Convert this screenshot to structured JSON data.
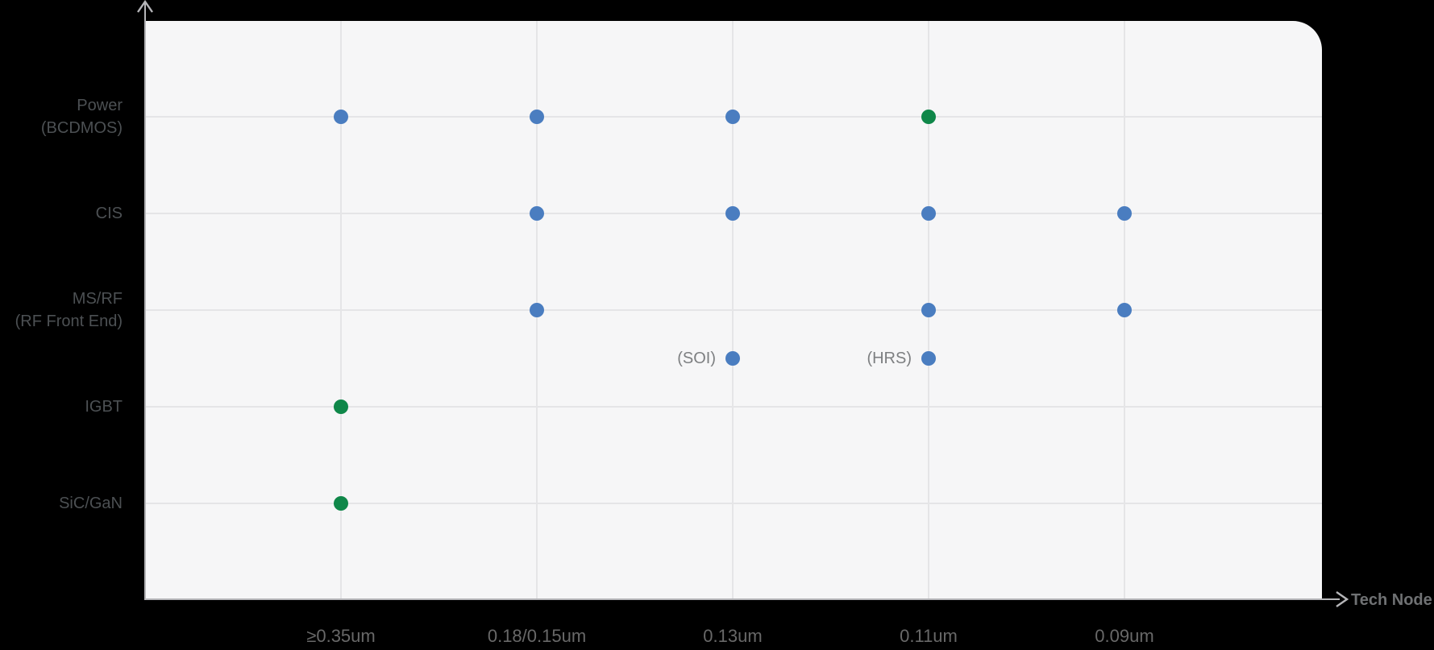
{
  "colors": {
    "blue": "#4a7dc0",
    "green": "#0f8749",
    "panel_bg": "#f6f6f7",
    "gridline": "#e5e5e7",
    "axis": "#b5b5b8",
    "page_bg": "#000000"
  },
  "axis_labels": {
    "x_title": "Tech Node"
  },
  "chart_data": {
    "type": "scatter",
    "xlabel": "Tech Node",
    "ylabel": "",
    "title": "",
    "grid": true,
    "legend": "none",
    "x_categories": [
      "≥0.35um",
      "0.18/0.15um",
      "0.13um",
      "0.11um",
      "0.09um"
    ],
    "y_categories": [
      "Power (BCDMOS)",
      "CIS",
      "MS/RF (RF Front End)",
      "IGBT",
      "SiC/GaN"
    ],
    "y_axis_labels": [
      {
        "row": 0,
        "lines": [
          "Power",
          "(BCDMOS)"
        ]
      },
      {
        "row": 1,
        "lines": [
          "CIS"
        ]
      },
      {
        "row": 2,
        "lines": [
          "MS/RF",
          "(RF Front End)"
        ]
      },
      {
        "row": 3,
        "lines": [
          "IGBT"
        ]
      },
      {
        "row": 4,
        "lines": [
          "SiC/GaN"
        ]
      }
    ],
    "x_ticks": [
      {
        "col": 0,
        "label": "≥0.35um"
      },
      {
        "col": 1,
        "label": "0.18/0.15um"
      },
      {
        "col": 2,
        "label": "0.13um"
      },
      {
        "col": 3,
        "label": "0.11um"
      },
      {
        "col": 4,
        "label": "0.09um"
      }
    ],
    "series": [
      {
        "name": "blue-dots",
        "color": "blue",
        "points": [
          {
            "y_cat": "Power (BCDMOS)",
            "row": 0,
            "x_cat": "≥0.35um",
            "col": 0
          },
          {
            "y_cat": "Power (BCDMOS)",
            "row": 0,
            "x_cat": "0.18/0.15um",
            "col": 1
          },
          {
            "y_cat": "Power (BCDMOS)",
            "row": 0,
            "x_cat": "0.13um",
            "col": 2
          },
          {
            "y_cat": "CIS",
            "row": 1,
            "x_cat": "0.18/0.15um",
            "col": 1
          },
          {
            "y_cat": "CIS",
            "row": 1,
            "x_cat": "0.13um",
            "col": 2
          },
          {
            "y_cat": "CIS",
            "row": 1,
            "x_cat": "0.11um",
            "col": 3
          },
          {
            "y_cat": "CIS",
            "row": 1,
            "x_cat": "0.09um",
            "col": 4
          },
          {
            "y_cat": "MS/RF (RF Front End)",
            "row": 2,
            "x_cat": "0.18/0.15um",
            "col": 1
          },
          {
            "y_cat": "MS/RF (RF Front End)",
            "row": 2,
            "x_cat": "0.11um",
            "col": 3
          },
          {
            "y_cat": "MS/RF (RF Front End)",
            "row": 2,
            "x_cat": "0.09um",
            "col": 4
          },
          {
            "y_cat": "MS/RF (RF Front End)",
            "row": 2.5,
            "x_cat": "0.13um",
            "col": 2,
            "note": "(SOI)"
          },
          {
            "y_cat": "MS/RF (RF Front End)",
            "row": 2.5,
            "x_cat": "0.11um",
            "col": 3,
            "note": "(HRS)"
          }
        ]
      },
      {
        "name": "green-dots",
        "color": "green",
        "points": [
          {
            "y_cat": "Power (BCDMOS)",
            "row": 0,
            "x_cat": "0.11um",
            "col": 3
          },
          {
            "y_cat": "IGBT",
            "row": 3,
            "x_cat": "≥0.35um",
            "col": 0
          },
          {
            "y_cat": "SiC/GaN",
            "row": 4,
            "x_cat": "≥0.35um",
            "col": 0
          }
        ]
      }
    ],
    "annotations": [
      {
        "text": "(SOI)",
        "attached_to": {
          "row": 2.5,
          "col": 2
        }
      },
      {
        "text": "(HRS)",
        "attached_to": {
          "row": 2.5,
          "col": 3
        }
      }
    ]
  }
}
